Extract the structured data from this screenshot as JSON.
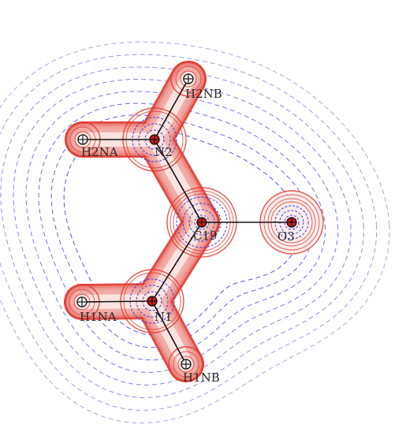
{
  "diagram": {
    "atoms": [
      {
        "id": "C19",
        "label": "C19",
        "element": "C"
      },
      {
        "id": "O3",
        "label": "O3",
        "element": "O"
      },
      {
        "id": "N2",
        "label": "N2",
        "element": "N"
      },
      {
        "id": "N1",
        "label": "N1",
        "element": "N"
      },
      {
        "id": "H2NA",
        "label": "H2NA",
        "element": "H"
      },
      {
        "id": "H2NB",
        "label": "H2NB",
        "element": "H"
      },
      {
        "id": "H1NA",
        "label": "H1NA",
        "element": "H"
      },
      {
        "id": "H1NB",
        "label": "H1NB",
        "element": "H"
      }
    ],
    "bonds": [
      [
        "C19",
        "O3"
      ],
      [
        "C19",
        "N2"
      ],
      [
        "C19",
        "N1"
      ],
      [
        "N2",
        "H2NA"
      ],
      [
        "N2",
        "H2NB"
      ],
      [
        "N1",
        "H1NA"
      ],
      [
        "N1",
        "H1NB"
      ]
    ],
    "colors": {
      "positive_contour": "#e0392f",
      "negative_contour": "#3b3bd6",
      "bond": "#111111",
      "critical_point": "#d01818"
    }
  }
}
